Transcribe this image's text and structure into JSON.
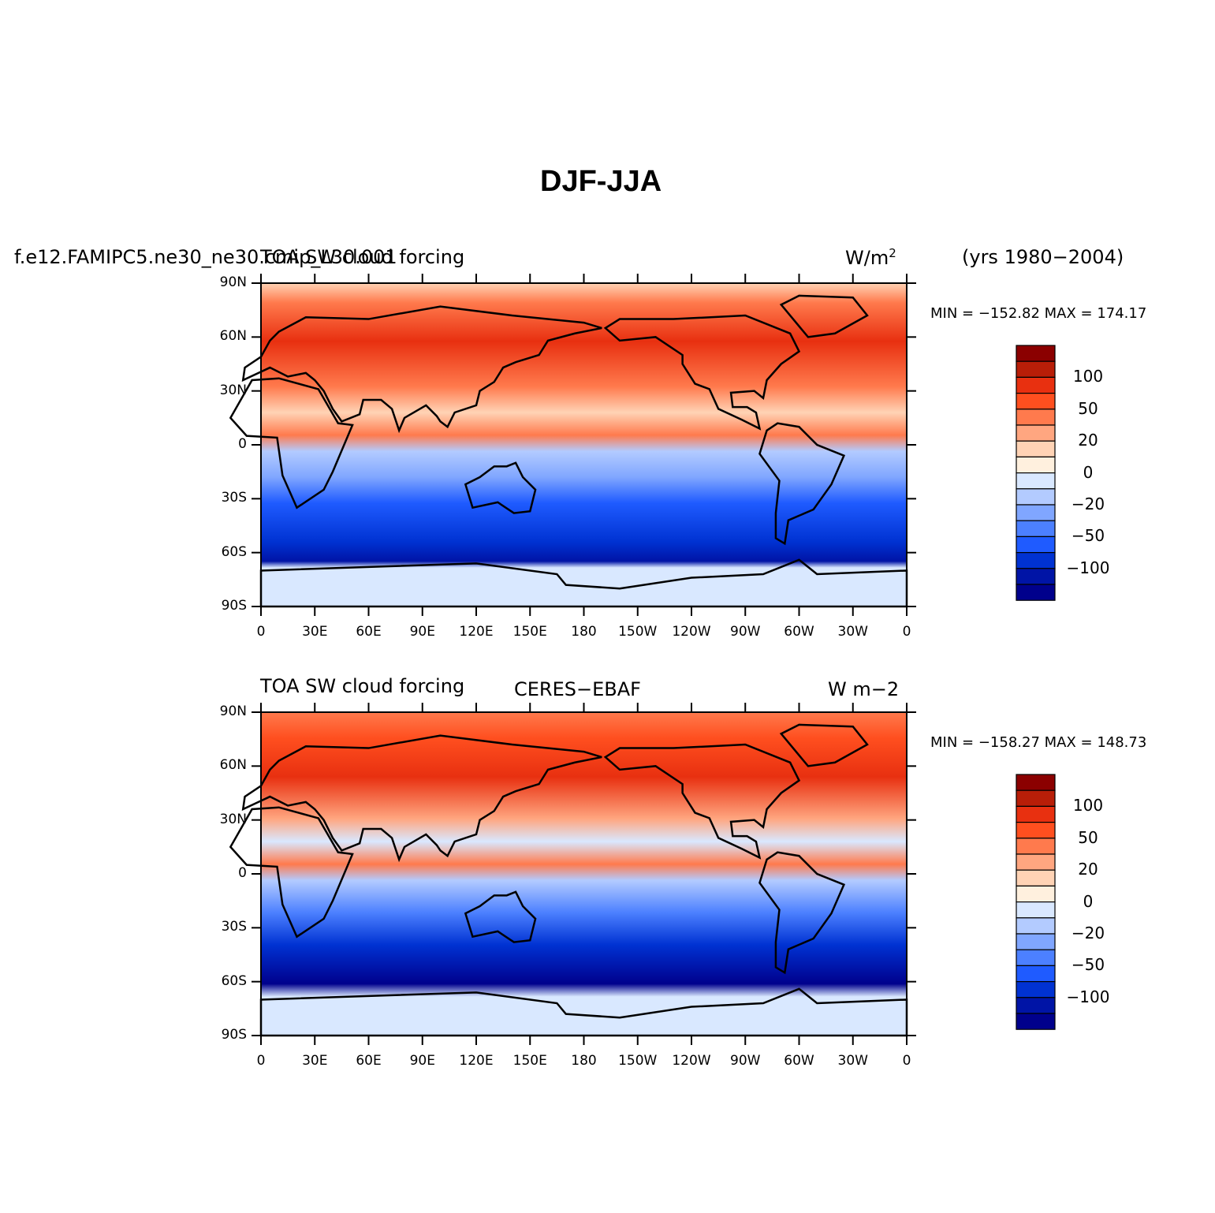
{
  "figure": {
    "title": "DJF-JJA",
    "years": "(yrs 1980−2004)"
  },
  "colors": {
    "levels": [
      "#00008c",
      "#0014a6",
      "#0032d2",
      "#1f5bff",
      "#4c80ff",
      "#80a6ff",
      "#b3cbff",
      "#d9e8ff",
      "#fff0de",
      "#ffd3b5",
      "#ffa680",
      "#ff7a4d",
      "#ff4f1f",
      "#e83010",
      "#b81e08",
      "#8b0000"
    ],
    "ocean_dark": "#0a2bcc",
    "coast": "#000000"
  },
  "axes": {
    "lat_ticks": [
      "90N",
      "60N",
      "30N",
      "0",
      "30S",
      "60S",
      "90S"
    ],
    "lon_ticks": [
      "0",
      "30E",
      "60E",
      "90E",
      "120E",
      "150E",
      "180",
      "150W",
      "120W",
      "90W",
      "60W",
      "30W",
      "0"
    ]
  },
  "colorbar": {
    "labels": [
      "100",
      "50",
      "20",
      "0",
      "−20",
      "−50",
      "−100"
    ]
  },
  "panels": [
    {
      "left_title": "f.e12.FAMIPC5.ne30_ne30.cmip_L30.001",
      "center_title": "TOA SW cloud forcing",
      "units_base": "W/m",
      "units_exp": "2",
      "stats": "MIN = −152.82  MAX = 174.17"
    },
    {
      "left_title": "TOA SW cloud forcing",
      "center_title": "CERES−EBAF",
      "units": "W m−2",
      "stats": "MIN = −158.27  MAX = 148.73"
    }
  ]
}
